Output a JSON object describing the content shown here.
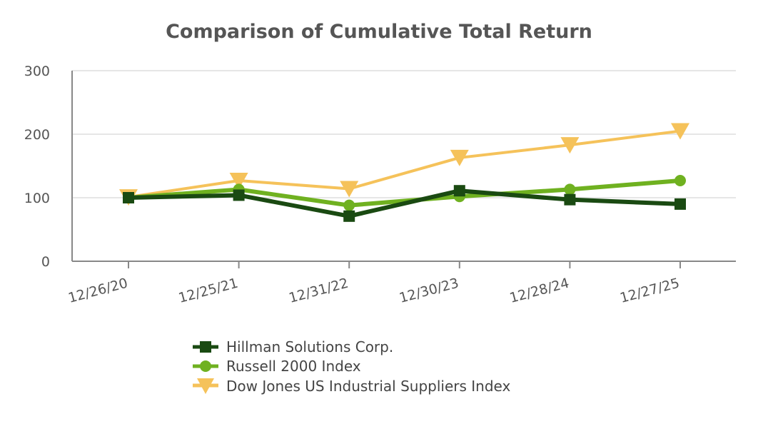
{
  "chart_data": {
    "type": "line",
    "title": "Comparison of Cumulative Total Return",
    "xlabel": "",
    "ylabel": "",
    "categories": [
      "12/26/20",
      "12/25/21",
      "12/31/22",
      "12/30/23",
      "12/28/24",
      "12/27/25"
    ],
    "y_ticks": [
      "0",
      "100",
      "200",
      "300"
    ],
    "ylim": [
      0,
      300
    ],
    "grid": true,
    "legend_position": "bottom",
    "series": [
      {
        "name": "Hillman Solutions Corp.",
        "marker": "square",
        "color": "#1a4a12",
        "values": [
          100,
          104,
          71,
          111,
          97,
          90
        ]
      },
      {
        "name": "Russell 2000 Index",
        "marker": "circle",
        "color": "#6fb120",
        "values": [
          100,
          113,
          88,
          102,
          113,
          127
        ]
      },
      {
        "name": "Dow Jones US Industrial Suppliers Index",
        "marker": "triangle-down",
        "color": "#f5c25a",
        "values": [
          101,
          127,
          114,
          163,
          183,
          205
        ]
      }
    ]
  }
}
